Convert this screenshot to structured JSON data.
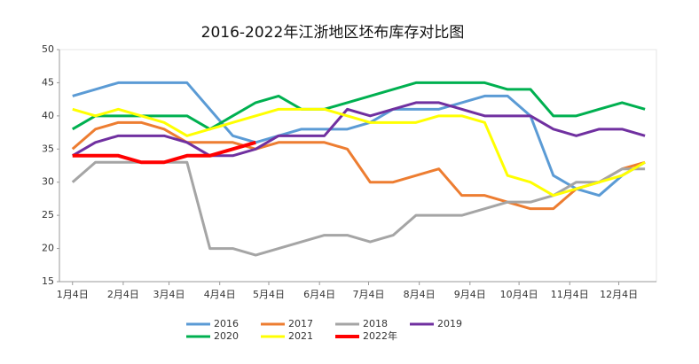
{
  "chart_data": {
    "type": "line",
    "title": "2016-2022年江浙地区坯布库存对比图",
    "x": [
      0,
      14,
      28,
      42,
      56,
      70,
      84,
      98,
      112,
      126,
      140,
      154,
      168,
      182,
      196,
      210,
      224,
      238,
      252,
      266,
      280,
      294,
      308,
      322,
      336,
      350
    ],
    "xlim": [
      -8,
      357
    ],
    "xticks": [
      {
        "value": 0,
        "label": "1月4日"
      },
      {
        "value": 31,
        "label": "2月4日"
      },
      {
        "value": 59,
        "label": "3月4日"
      },
      {
        "value": 90,
        "label": "4月4日"
      },
      {
        "value": 120,
        "label": "5月4日"
      },
      {
        "value": 151,
        "label": "6月4日"
      },
      {
        "value": 181,
        "label": "7月4日"
      },
      {
        "value": 212,
        "label": "8月4日"
      },
      {
        "value": 243,
        "label": "9月4日"
      },
      {
        "value": 273,
        "label": "10月4日"
      },
      {
        "value": 304,
        "label": "11月4日"
      },
      {
        "value": 334,
        "label": "12月4日"
      }
    ],
    "ylim": [
      15,
      50
    ],
    "yticks": [
      15,
      20,
      25,
      30,
      35,
      40,
      45,
      50
    ],
    "grid": false,
    "series": [
      {
        "name": "2016",
        "color": "#5b9bd5",
        "values": [
          43,
          44,
          45,
          45,
          45,
          45,
          41,
          37,
          36,
          37,
          38,
          38,
          38,
          39,
          41,
          41,
          41,
          42,
          43,
          43,
          40,
          31,
          29,
          28,
          31,
          33
        ]
      },
      {
        "name": "2017",
        "color": "#ed7d31",
        "values": [
          35,
          38,
          39,
          39,
          38,
          36,
          36,
          36,
          35,
          36,
          36,
          36,
          35,
          30,
          30,
          31,
          32,
          28,
          28,
          27,
          26,
          26,
          29,
          30,
          32,
          33
        ]
      },
      {
        "name": "2018",
        "color": "#a5a5a5",
        "values": [
          30,
          33,
          33,
          33,
          33,
          33,
          20,
          20,
          19,
          20,
          21,
          22,
          22,
          21,
          22,
          25,
          25,
          25,
          26,
          27,
          27,
          28,
          30,
          30,
          32,
          32
        ]
      },
      {
        "name": "2019",
        "color": "#7030a0",
        "values": [
          34,
          36,
          37,
          37,
          37,
          36,
          34,
          34,
          35,
          37,
          37,
          37,
          41,
          40,
          41,
          42,
          42,
          41,
          40,
          40,
          40,
          38,
          37,
          38,
          38,
          37
        ]
      },
      {
        "name": "2020",
        "color": "#00b050",
        "values": [
          38,
          40,
          40,
          40,
          40,
          40,
          38,
          40,
          42,
          43,
          41,
          41,
          42,
          43,
          44,
          45,
          45,
          45,
          45,
          44,
          44,
          40,
          40,
          41,
          42,
          41
        ]
      },
      {
        "name": "2021",
        "color": "#ffff00",
        "values": [
          41,
          40,
          41,
          40,
          39,
          37,
          38,
          39,
          40,
          41,
          41,
          41,
          40,
          39,
          39,
          39,
          40,
          40,
          39,
          31,
          30,
          28,
          29,
          30,
          31,
          33
        ]
      },
      {
        "name": "2022年",
        "color": "#ff0000",
        "values": [
          34,
          34,
          34,
          33,
          33,
          34,
          34,
          35,
          36,
          null,
          null,
          null,
          null,
          null,
          null,
          null,
          null,
          null,
          null,
          null,
          null,
          null,
          null,
          null,
          null,
          null
        ]
      }
    ]
  }
}
